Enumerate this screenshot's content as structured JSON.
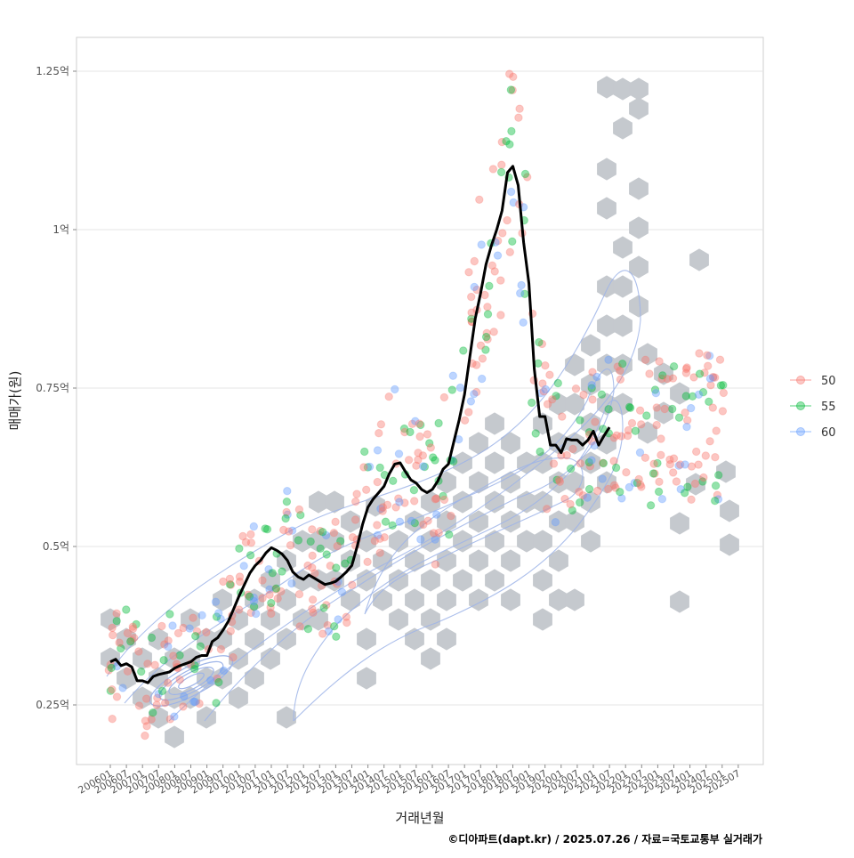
{
  "chart_data": {
    "type": "scatter",
    "xlabel": "거래년월",
    "ylabel": "매매가(원)",
    "caption": "©디아파트(dapt.kr) / 2025.07.26 / 자료=국토교통부 실거래가",
    "ylim": [
      0.17,
      1.3
    ],
    "y_ticks": [
      {
        "value": 0.25,
        "label": "0.25억"
      },
      {
        "value": 0.5,
        "label": "0.5억"
      },
      {
        "value": 0.75,
        "label": "0.75억"
      },
      {
        "value": 1.0,
        "label": "1억"
      },
      {
        "value": 1.25,
        "label": "1.25억"
      }
    ],
    "x_ticks": [
      "200601",
      "200607",
      "200701",
      "200707",
      "200801",
      "200807",
      "200901",
      "200907",
      "201001",
      "201007",
      "201101",
      "201107",
      "201201",
      "201207",
      "201301",
      "201307",
      "201401",
      "201407",
      "201501",
      "201507",
      "201601",
      "201607",
      "201701",
      "201707",
      "201801",
      "201807",
      "201901",
      "201907",
      "202001",
      "202007",
      "202101",
      "202107",
      "202201",
      "202207",
      "202301",
      "202307",
      "202401",
      "202407",
      "202501",
      "202507"
    ],
    "grid": true,
    "legend_position": "right",
    "legend": [
      {
        "name": "50",
        "color": "#F8766D"
      },
      {
        "name": "55",
        "color": "#00BA38"
      },
      {
        "name": "60",
        "color": "#619CFF"
      }
    ],
    "hex_color": "#C5C9CE",
    "trend_line_color": "#000000",
    "density_color": "#9EB4E8",
    "trend": [
      [
        "200601",
        0.318
      ],
      [
        "200603",
        0.322
      ],
      [
        "200605",
        0.312
      ],
      [
        "200607",
        0.315
      ],
      [
        "200609",
        0.31
      ],
      [
        "200611",
        0.288
      ],
      [
        "200701",
        0.288
      ],
      [
        "200703",
        0.285
      ],
      [
        "200705",
        0.295
      ],
      [
        "200707",
        0.298
      ],
      [
        "200709",
        0.3
      ],
      [
        "200711",
        0.302
      ],
      [
        "200801",
        0.308
      ],
      [
        "200803",
        0.312
      ],
      [
        "200805",
        0.315
      ],
      [
        "200807",
        0.318
      ],
      [
        "200809",
        0.325
      ],
      [
        "200811",
        0.328
      ],
      [
        "200901",
        0.328
      ],
      [
        "200903",
        0.35
      ],
      [
        "200905",
        0.356
      ],
      [
        "200907",
        0.368
      ],
      [
        "200909",
        0.382
      ],
      [
        "200911",
        0.402
      ],
      [
        "201001",
        0.422
      ],
      [
        "201003",
        0.44
      ],
      [
        "201005",
        0.458
      ],
      [
        "201007",
        0.47
      ],
      [
        "201009",
        0.478
      ],
      [
        "201011",
        0.49
      ],
      [
        "201101",
        0.498
      ],
      [
        "201103",
        0.494
      ],
      [
        "201105",
        0.488
      ],
      [
        "201107",
        0.478
      ],
      [
        "201109",
        0.46
      ],
      [
        "201111",
        0.452
      ],
      [
        "201201",
        0.448
      ],
      [
        "201203",
        0.455
      ],
      [
        "201205",
        0.45
      ],
      [
        "201207",
        0.445
      ],
      [
        "201209",
        0.44
      ],
      [
        "201211",
        0.442
      ],
      [
        "201301",
        0.445
      ],
      [
        "201303",
        0.452
      ],
      [
        "201305",
        0.46
      ],
      [
        "201307",
        0.47
      ],
      [
        "201309",
        0.5
      ],
      [
        "201311",
        0.535
      ],
      [
        "201401",
        0.562
      ],
      [
        "201403",
        0.575
      ],
      [
        "201405",
        0.585
      ],
      [
        "201407",
        0.595
      ],
      [
        "201409",
        0.615
      ],
      [
        "201411",
        0.63
      ],
      [
        "201501",
        0.632
      ],
      [
        "201503",
        0.618
      ],
      [
        "201505",
        0.605
      ],
      [
        "201507",
        0.6
      ],
      [
        "201509",
        0.59
      ],
      [
        "201511",
        0.585
      ],
      [
        "201601",
        0.59
      ],
      [
        "201603",
        0.603
      ],
      [
        "201605",
        0.622
      ],
      [
        "201607",
        0.63
      ],
      [
        "201609",
        0.665
      ],
      [
        "201611",
        0.7
      ],
      [
        "201701",
        0.74
      ],
      [
        "201703",
        0.8
      ],
      [
        "201705",
        0.86
      ],
      [
        "201707",
        0.9
      ],
      [
        "201709",
        0.945
      ],
      [
        "201711",
        0.975
      ],
      [
        "201801",
        1.0
      ],
      [
        "201803",
        1.03
      ],
      [
        "201805",
        1.09
      ],
      [
        "201807",
        1.1
      ],
      [
        "201809",
        1.07
      ],
      [
        "201811",
        0.98
      ],
      [
        "201901",
        0.915
      ],
      [
        "201903",
        0.78
      ],
      [
        "201905",
        0.705
      ],
      [
        "201907",
        0.705
      ],
      [
        "201909",
        0.66
      ],
      [
        "201911",
        0.66
      ],
      [
        "202001",
        0.648
      ],
      [
        "202003",
        0.67
      ],
      [
        "202005",
        0.668
      ],
      [
        "202007",
        0.668
      ],
      [
        "202009",
        0.66
      ],
      [
        "202011",
        0.668
      ],
      [
        "202101",
        0.682
      ],
      [
        "202103",
        0.66
      ],
      [
        "202105",
        0.675
      ],
      [
        "202107",
        0.688
      ]
    ]
  }
}
